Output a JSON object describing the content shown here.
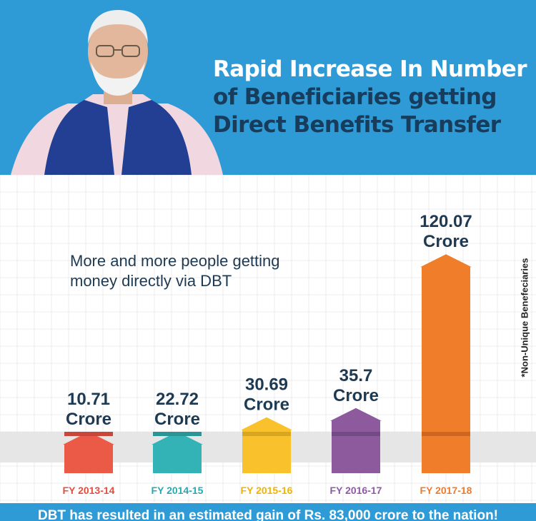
{
  "header": {
    "title_line1": "Rapid Increase In Number",
    "title_line2": "of Beneficiaries getting",
    "title_line3": "Direct Benefits Transfer"
  },
  "subtitle_line1": "More and more people getting",
  "subtitle_line2": "money directly via DBT",
  "footnote": "*Non-Unique Benefeciaries",
  "bottom_banner": "DBT has resulted in an estimated gain of Rs. 83,000 crore to the nation!",
  "colors": {
    "header_bg": "#2f9bd6",
    "title_dark": "#183c5c",
    "label_text": "#1e3a52",
    "band": "#e6e6e6"
  },
  "chart_data": {
    "type": "bar",
    "title": "Rapid Increase In Number of Beneficiaries getting Direct Benefits Transfer",
    "unit": "Crore",
    "xlabel": "",
    "ylabel": "",
    "ylim": [
      0,
      120.07
    ],
    "categories": [
      "FY 2013-14",
      "FY 2014-15",
      "FY 2015-16",
      "FY 2016-17",
      "FY 2017-18"
    ],
    "values": [
      10.71,
      22.72,
      30.69,
      35.7,
      120.07
    ],
    "value_labels": [
      "10.71",
      "22.72",
      "30.69",
      "35.7",
      "120.07"
    ],
    "colors": [
      "#ea5a47",
      "#33b3b5",
      "#f9c22c",
      "#8d5a9e",
      "#f07d2a"
    ],
    "shadow_colors": [
      "#c9473a",
      "#299597",
      "#d9a61f",
      "#744a84",
      "#cd6620"
    ],
    "label_colors": [
      "#e74c3c",
      "#27a9b3",
      "#f2b200",
      "#8e5aa6",
      "#ef7c2c"
    ]
  }
}
